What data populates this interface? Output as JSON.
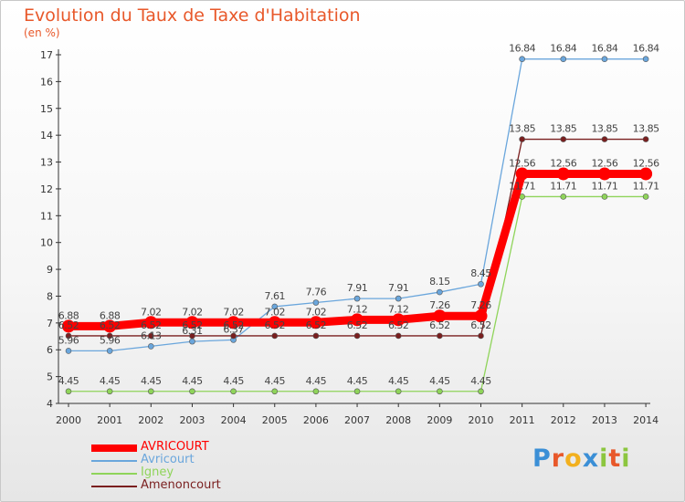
{
  "header": {
    "title": "Evolution du Taux de Taxe d'Habitation",
    "subtitle": "(en %)"
  },
  "logo": {
    "text": "Proxiti",
    "letters": [
      "P",
      "r",
      "o",
      "x",
      "i",
      "t",
      "i"
    ],
    "colors": [
      "#3b8fd6",
      "#e8582a",
      "#f2b01e",
      "#3b8fd6",
      "#8cc63f",
      "#e8582a",
      "#8cc63f"
    ]
  },
  "chart_data": {
    "type": "line",
    "title": "Evolution du Taux de Taxe d'Habitation",
    "ylabel": "(en %)",
    "xlabel": "",
    "x": [
      "2000",
      "2001",
      "2002",
      "2003",
      "2004",
      "2005",
      "2006",
      "2007",
      "2008",
      "2009",
      "2010",
      "2011",
      "2012",
      "2013",
      "2014"
    ],
    "ylim": [
      4,
      17
    ],
    "yticks": [
      "4",
      "5",
      "6",
      "7",
      "8",
      "9",
      "10",
      "11",
      "12",
      "13",
      "14",
      "15",
      "16",
      "17"
    ],
    "grid": false,
    "legend": "bottom-left",
    "series": [
      {
        "name": "AVRICOURT",
        "color": "#ff0000",
        "bold": true,
        "values": [
          6.88,
          6.88,
          7.02,
          7.02,
          7.02,
          7.02,
          7.02,
          7.12,
          7.12,
          7.26,
          7.26,
          12.56,
          12.56,
          12.56,
          12.56
        ],
        "labels": [
          "6.88",
          "6.88",
          "7.02",
          "7.02",
          "7.02",
          "7.02",
          "7.02",
          "7.12",
          "7.12",
          "7.26",
          "7.26",
          "12.56",
          "12.56",
          "12.56",
          "12.56"
        ]
      },
      {
        "name": "Avricourt",
        "color": "#6aa6dc",
        "bold": false,
        "values": [
          5.96,
          5.96,
          6.13,
          6.31,
          6.37,
          7.61,
          7.76,
          7.91,
          7.91,
          8.15,
          8.45,
          16.84,
          16.84,
          16.84,
          16.84
        ],
        "labels": [
          "5.96",
          "5.96",
          "6.13",
          "6.31",
          "6.37",
          "7.61",
          "7.76",
          "7.91",
          "7.91",
          "8.15",
          "8.45",
          "16.84",
          "16.84",
          "16.84",
          "16.84"
        ]
      },
      {
        "name": "Igney",
        "color": "#8fd45a",
        "bold": false,
        "values": [
          4.45,
          4.45,
          4.45,
          4.45,
          4.45,
          4.45,
          4.45,
          4.45,
          4.45,
          4.45,
          4.45,
          11.71,
          11.71,
          11.71,
          11.71
        ],
        "labels": [
          "4.45",
          "4.45",
          "4.45",
          "4.45",
          "4.45",
          "4.45",
          "4.45",
          "4.45",
          "4.45",
          "4.45",
          "4.45",
          "11.71",
          "11.71",
          "11.71",
          "11.71"
        ]
      },
      {
        "name": "Amenoncourt",
        "color": "#7a1f1f",
        "bold": false,
        "values": [
          6.52,
          6.52,
          6.52,
          6.52,
          6.52,
          6.52,
          6.52,
          6.52,
          6.52,
          6.52,
          6.52,
          13.85,
          13.85,
          13.85,
          13.85
        ],
        "labels": [
          "6.52",
          "6.52",
          "6.52",
          "6.52",
          "6.52",
          "6.52",
          "6.52",
          "6.52",
          "6.52",
          "6.52",
          "6.52",
          "13.85",
          "13.85",
          "13.85",
          "13.85"
        ]
      }
    ]
  }
}
